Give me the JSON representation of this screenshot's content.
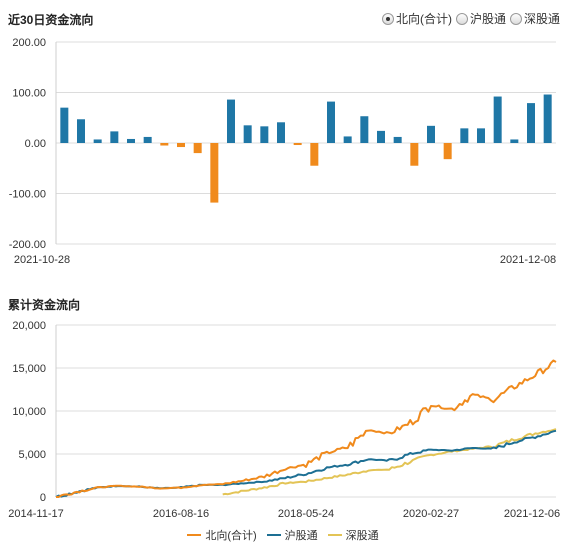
{
  "header": {
    "title": "近30日资金流向",
    "options": [
      {
        "label": "北向(合计)",
        "selected": true
      },
      {
        "label": "沪股通",
        "selected": false
      },
      {
        "label": "深股通",
        "selected": false
      }
    ]
  },
  "cumulative_title": "累计资金流向",
  "colors": {
    "positive": "#1f77a6",
    "negative": "#f08a1c",
    "north": "#f08a1c",
    "sh": "#1d6f93",
    "sz": "#e3c456"
  },
  "chart_data": [
    {
      "type": "bar",
      "title": "近30日资金流向",
      "x_tick_labels": [
        "2021-10-28",
        "2021-12-08"
      ],
      "yticks": [
        "200.00",
        "100.00",
        "0.00",
        "-100.00",
        "-200.00"
      ],
      "ylim": [
        -200,
        200
      ],
      "grid": true,
      "values": [
        70,
        47,
        7,
        23,
        8,
        12,
        -5,
        -8,
        -20,
        -118,
        86,
        35,
        33,
        41,
        -4,
        -45,
        82,
        13,
        53,
        24,
        12,
        -45,
        34,
        -32,
        29,
        29,
        92,
        7,
        79,
        96
      ]
    },
    {
      "type": "line",
      "title": "累计资金流向",
      "x_tick_labels": [
        "2014-11-17",
        "2016-08-16",
        "2018-05-24",
        "2020-02-27",
        "2021-12-06"
      ],
      "yticks": [
        "20,000",
        "15,000",
        "10,000",
        "5,000",
        "0"
      ],
      "ylim": [
        0,
        20000
      ],
      "grid": true,
      "legend_position": "bottom",
      "series": [
        {
          "name": "北向(合计)",
          "values": [
            0,
            600,
            1100,
            1300,
            1200,
            1000,
            1100,
            1400,
            1500,
            1900,
            2400,
            3300,
            3800,
            5100,
            5800,
            7800,
            7400,
            8600,
            10700,
            10200,
            11900,
            11300,
            12800,
            14200,
            15700
          ]
        },
        {
          "name": "沪股通",
          "values": [
            0,
            600,
            1100,
            1300,
            1200,
            1000,
            1100,
            1400,
            1400,
            1600,
            1800,
            2200,
            2700,
            3400,
            3800,
            4400,
            4200,
            5000,
            5500,
            5400,
            5700,
            5600,
            6400,
            7000,
            7700
          ]
        },
        {
          "name": "深股通",
          "values": [
            null,
            null,
            null,
            null,
            null,
            null,
            null,
            null,
            300,
            700,
            1100,
            1600,
            1800,
            2200,
            2600,
            3100,
            3200,
            4100,
            4900,
            5300,
            5600,
            5900,
            6700,
            7400,
            7900
          ]
        }
      ]
    }
  ]
}
